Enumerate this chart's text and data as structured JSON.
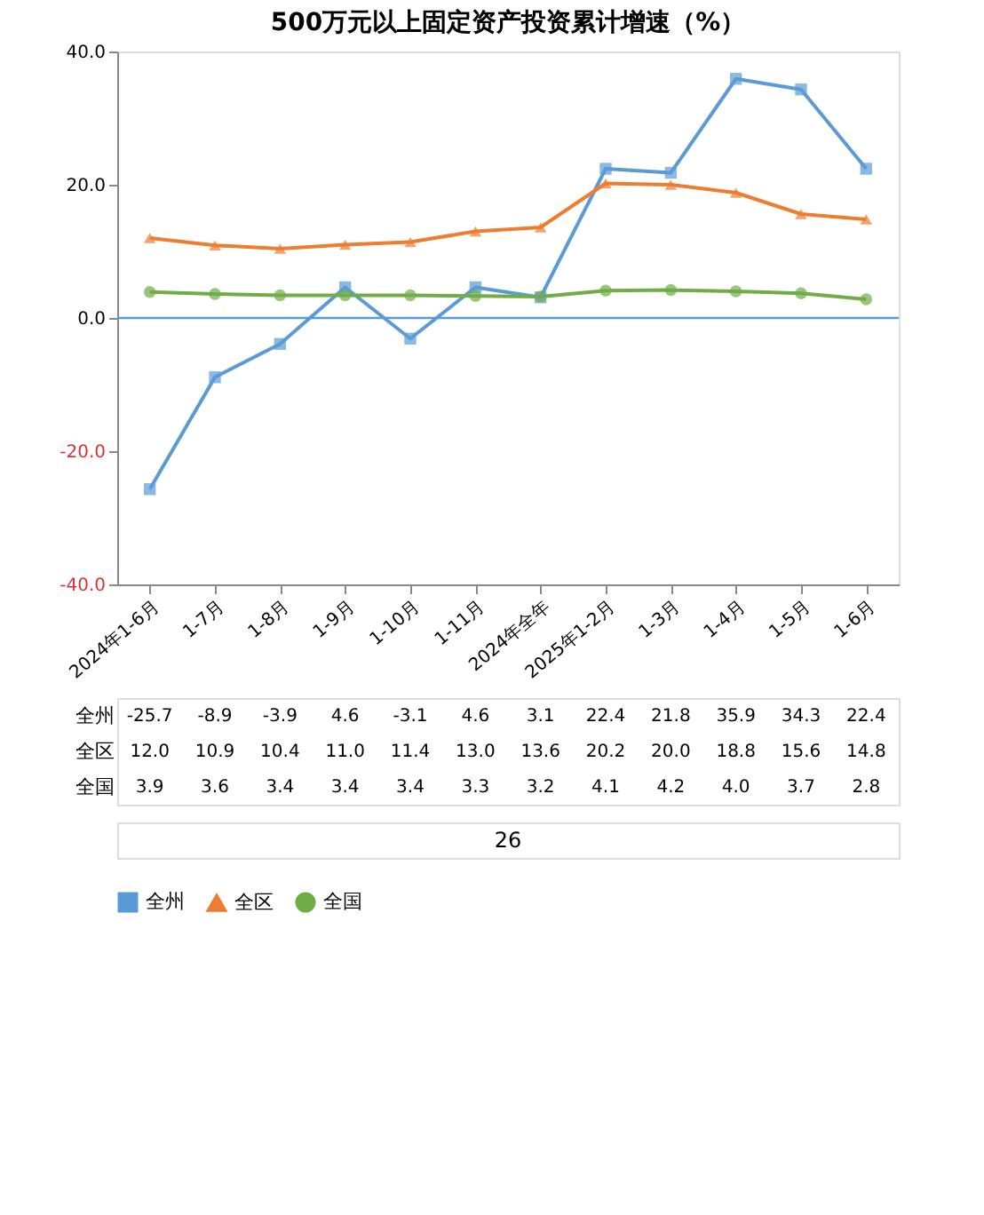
{
  "chart_data": {
    "type": "line",
    "title": "500万元以上固定资产投资累计增速（%）",
    "categories": [
      "2024年1-6月",
      "1-7月",
      "1-8月",
      "1-9月",
      "1-10月",
      "1-11月",
      "2024年全年",
      "2025年1-2月",
      "1-3月",
      "1-4月",
      "1-5月",
      "1-6月"
    ],
    "series": [
      {
        "name": "全州",
        "color": "#5b9bd5",
        "marker": "square",
        "values": [
          -25.7,
          -8.9,
          -3.9,
          4.6,
          -3.1,
          4.6,
          3.1,
          22.4,
          21.8,
          35.9,
          34.3,
          22.4
        ],
        "value_labels": [
          "-25.7",
          "-8.9",
          "-3.9",
          "4.6",
          "-3.1",
          "4.6",
          "3.1",
          "22.4",
          "21.8",
          "35.9",
          "34.3",
          "22.4"
        ]
      },
      {
        "name": "全区",
        "color": "#ed7d31",
        "marker": "triangle",
        "values": [
          12.0,
          10.9,
          10.4,
          11.0,
          11.4,
          13.0,
          13.6,
          20.2,
          20.0,
          18.8,
          15.6,
          14.8
        ],
        "value_labels": [
          "12.0",
          "10.9",
          "10.4",
          "11.0",
          "11.4",
          "13.0",
          "13.6",
          "20.2",
          "20.0",
          "18.8",
          "15.6",
          "14.8"
        ]
      },
      {
        "name": "全国",
        "color": "#70ad47",
        "marker": "circle",
        "values": [
          3.9,
          3.6,
          3.4,
          3.4,
          3.4,
          3.3,
          3.2,
          4.1,
          4.2,
          4.0,
          3.7,
          2.8
        ],
        "value_labels": [
          "3.9",
          "3.6",
          "3.4",
          "3.4",
          "3.4",
          "3.3",
          "3.2",
          "4.1",
          "4.2",
          "4.0",
          "3.7",
          "2.8"
        ]
      }
    ],
    "ylim": [
      -40,
      40
    ],
    "yticks": [
      {
        "value": -40,
        "label": "-40.0"
      },
      {
        "value": -20,
        "label": "-20.0"
      },
      {
        "value": 0,
        "label": "0.0"
      },
      {
        "value": 20,
        "label": "20.0"
      },
      {
        "value": 40,
        "label": "40.0"
      }
    ],
    "ref_lines": [
      {
        "axis": "y",
        "value": 0,
        "color": "#5b9bd5"
      }
    ],
    "grid": false,
    "legend": "bottom",
    "line_style": "solid",
    "annotations": [
      "26"
    ]
  }
}
